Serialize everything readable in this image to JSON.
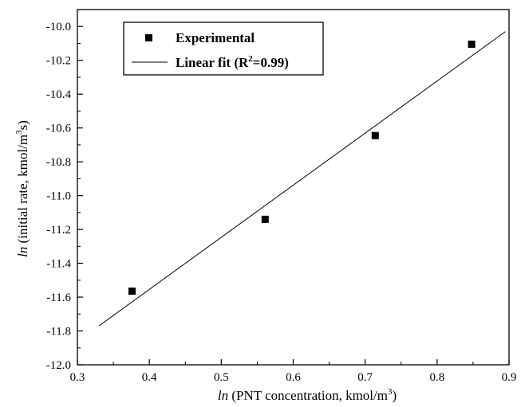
{
  "chart_data": {
    "type": "scatter",
    "xlabel": {
      "italic": "ln",
      "text": " (PNT concentration, kmol/m",
      "sup": "3",
      "close": ")"
    },
    "ylabel": {
      "italic": "ln",
      "text": " (initial rate, kmol/m",
      "sup": "3",
      "tail": "s)"
    },
    "xlim": [
      0.3,
      0.9
    ],
    "ylim": [
      -12.0,
      -9.9
    ],
    "xticks": [
      "0.3",
      "0.4",
      "0.5",
      "0.6",
      "0.7",
      "0.8",
      "0.9"
    ],
    "yticks": [
      "-12.0",
      "-11.8",
      "-11.6",
      "-11.4",
      "-11.2",
      "-11.0",
      "-10.8",
      "-10.6",
      "-10.4",
      "-10.2",
      "-10.0"
    ],
    "legend_position": "top-left",
    "series": [
      {
        "name": "Experimental",
        "kind": "scatter",
        "marker": "square",
        "x": [
          0.376,
          0.561,
          0.714,
          0.848
        ],
        "y": [
          -11.565,
          -11.14,
          -10.645,
          -10.105
        ]
      },
      {
        "name": "Linear fit",
        "kind": "line",
        "x": [
          0.33,
          0.895
        ],
        "y": [
          -11.77,
          -10.03
        ]
      }
    ],
    "legend": [
      {
        "label": "Experimental",
        "marker": "square"
      },
      {
        "label": "Linear fit (R",
        "sup": "2",
        "tail": "=0.99)",
        "marker": "line"
      }
    ],
    "colors": {
      "marker": "#000000",
      "line": "#000000",
      "axis": "#000000"
    }
  }
}
